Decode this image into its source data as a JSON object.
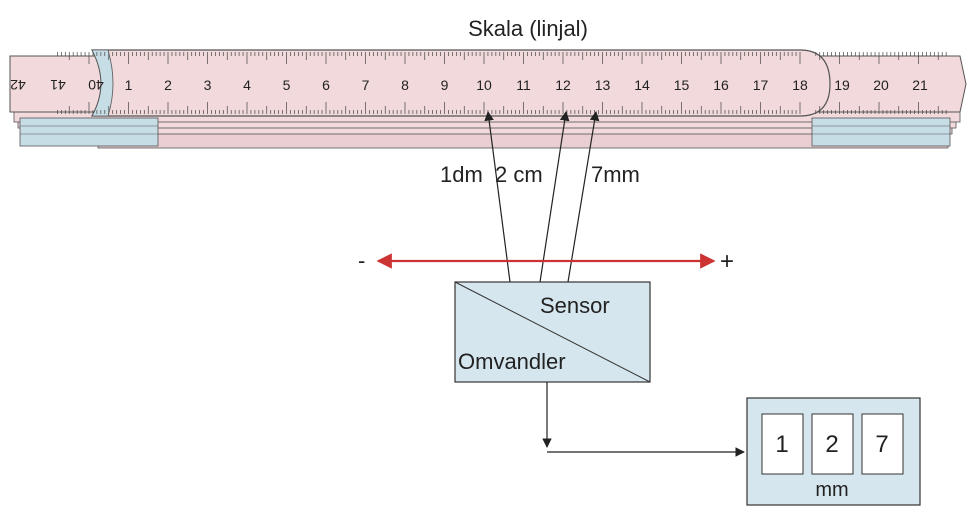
{
  "title": "Skala (linjal)",
  "colors": {
    "ruler_pink": "#f1d9dc",
    "ruler_blue": "#c7dde6",
    "box_fill": "#d6e6ee",
    "arrow_red": "#cc3333",
    "stroke": "#333333"
  },
  "ruler": {
    "main_numbers": [
      "1",
      "2",
      "3",
      "4",
      "5",
      "6",
      "7",
      "8",
      "9",
      "10",
      "11",
      "12",
      "13",
      "14",
      "15",
      "16",
      "17",
      "18"
    ],
    "right_numbers": [
      "19",
      "20",
      "21"
    ],
    "reversed_numbers": [
      "42",
      "41",
      "40"
    ]
  },
  "measurements": {
    "dm": "1dm",
    "cm": "2 cm",
    "mm": "7mm"
  },
  "direction": {
    "minus": "-",
    "plus": "+"
  },
  "sensor_box": {
    "sensor_label": "Sensor",
    "converter_label": "Omvandler"
  },
  "display": {
    "digits": [
      "1",
      "2",
      "7"
    ],
    "unit": "mm"
  }
}
